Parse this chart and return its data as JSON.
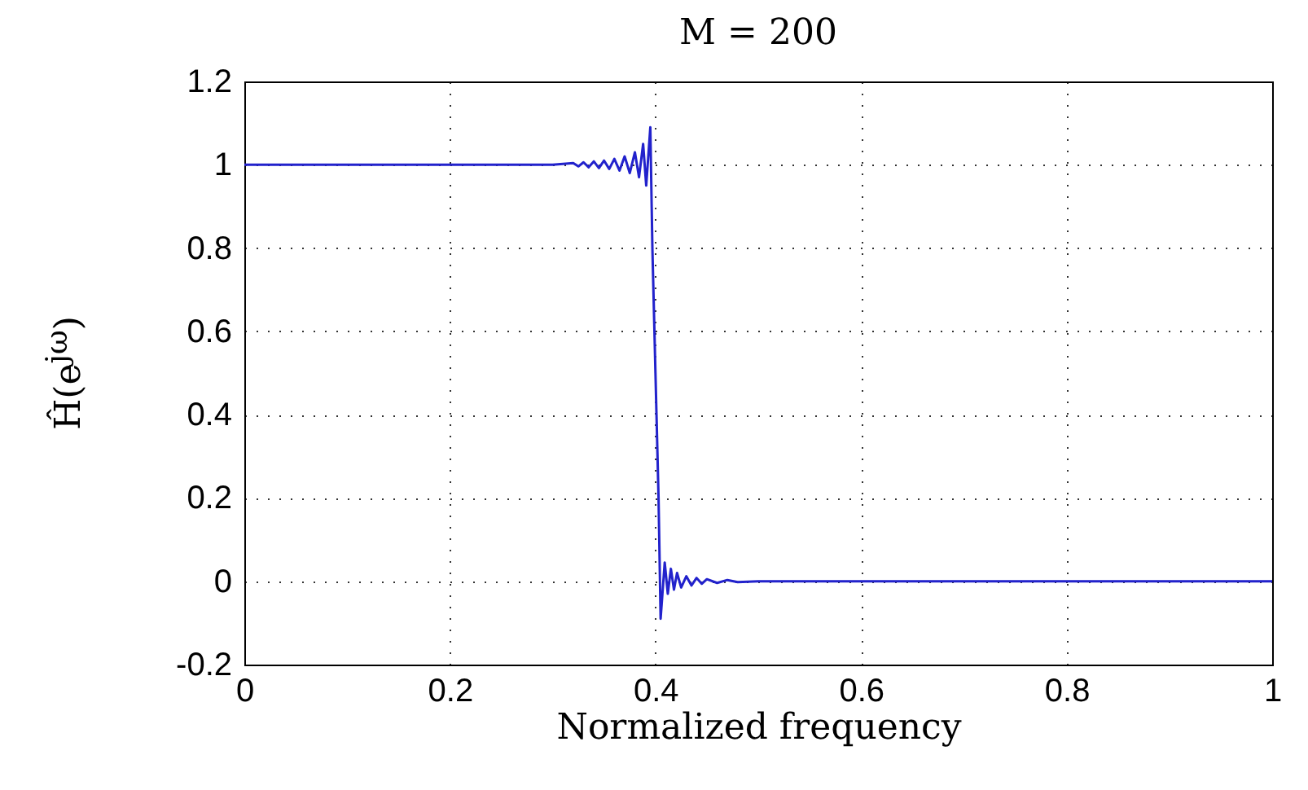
{
  "chart_data": {
    "type": "line",
    "title": "M = 200",
    "xlabel": "Normalized frequency",
    "ylabel": "Ĥ(e$^{jω}$)",
    "xlim": [
      0,
      1
    ],
    "xticks": [
      0,
      0.2,
      0.4,
      0.6,
      0.8,
      1
    ],
    "ylim": [
      -0.2,
      1.2
    ],
    "yticks": [
      -0.2,
      0,
      0.2,
      0.4,
      0.6,
      0.8,
      1,
      1.2
    ],
    "grid": true,
    "line_style": "solid",
    "marker": "none",
    "series": [
      {
        "color": "#2222cc",
        "x": [
          0,
          0.1,
          0.2,
          0.3,
          0.32,
          0.325,
          0.33,
          0.335,
          0.34,
          0.345,
          0.35,
          0.355,
          0.36,
          0.365,
          0.37,
          0.375,
          0.38,
          0.384,
          0.388,
          0.391,
          0.395,
          0.397,
          0.399,
          0.4,
          0.401,
          0.403,
          0.405,
          0.409,
          0.412,
          0.415,
          0.418,
          0.421,
          0.425,
          0.43,
          0.435,
          0.44,
          0.445,
          0.45,
          0.46,
          0.47,
          0.48,
          0.5,
          0.7,
          1
        ],
        "values": [
          1,
          1,
          1,
          1,
          1.004,
          0.996,
          1.006,
          0.994,
          1.008,
          0.992,
          1.01,
          0.99,
          1.014,
          0.986,
          1.02,
          0.98,
          1.03,
          0.97,
          1.05,
          0.95,
          1.09,
          0.8,
          0.6,
          0.5,
          0.4,
          0.2,
          -0.09,
          0.045,
          -0.03,
          0.03,
          -0.02,
          0.02,
          -0.015,
          0.012,
          -0.01,
          0.008,
          -0.006,
          0.005,
          -0.004,
          0.003,
          -0.002,
          0,
          0,
          0
        ]
      }
    ]
  }
}
